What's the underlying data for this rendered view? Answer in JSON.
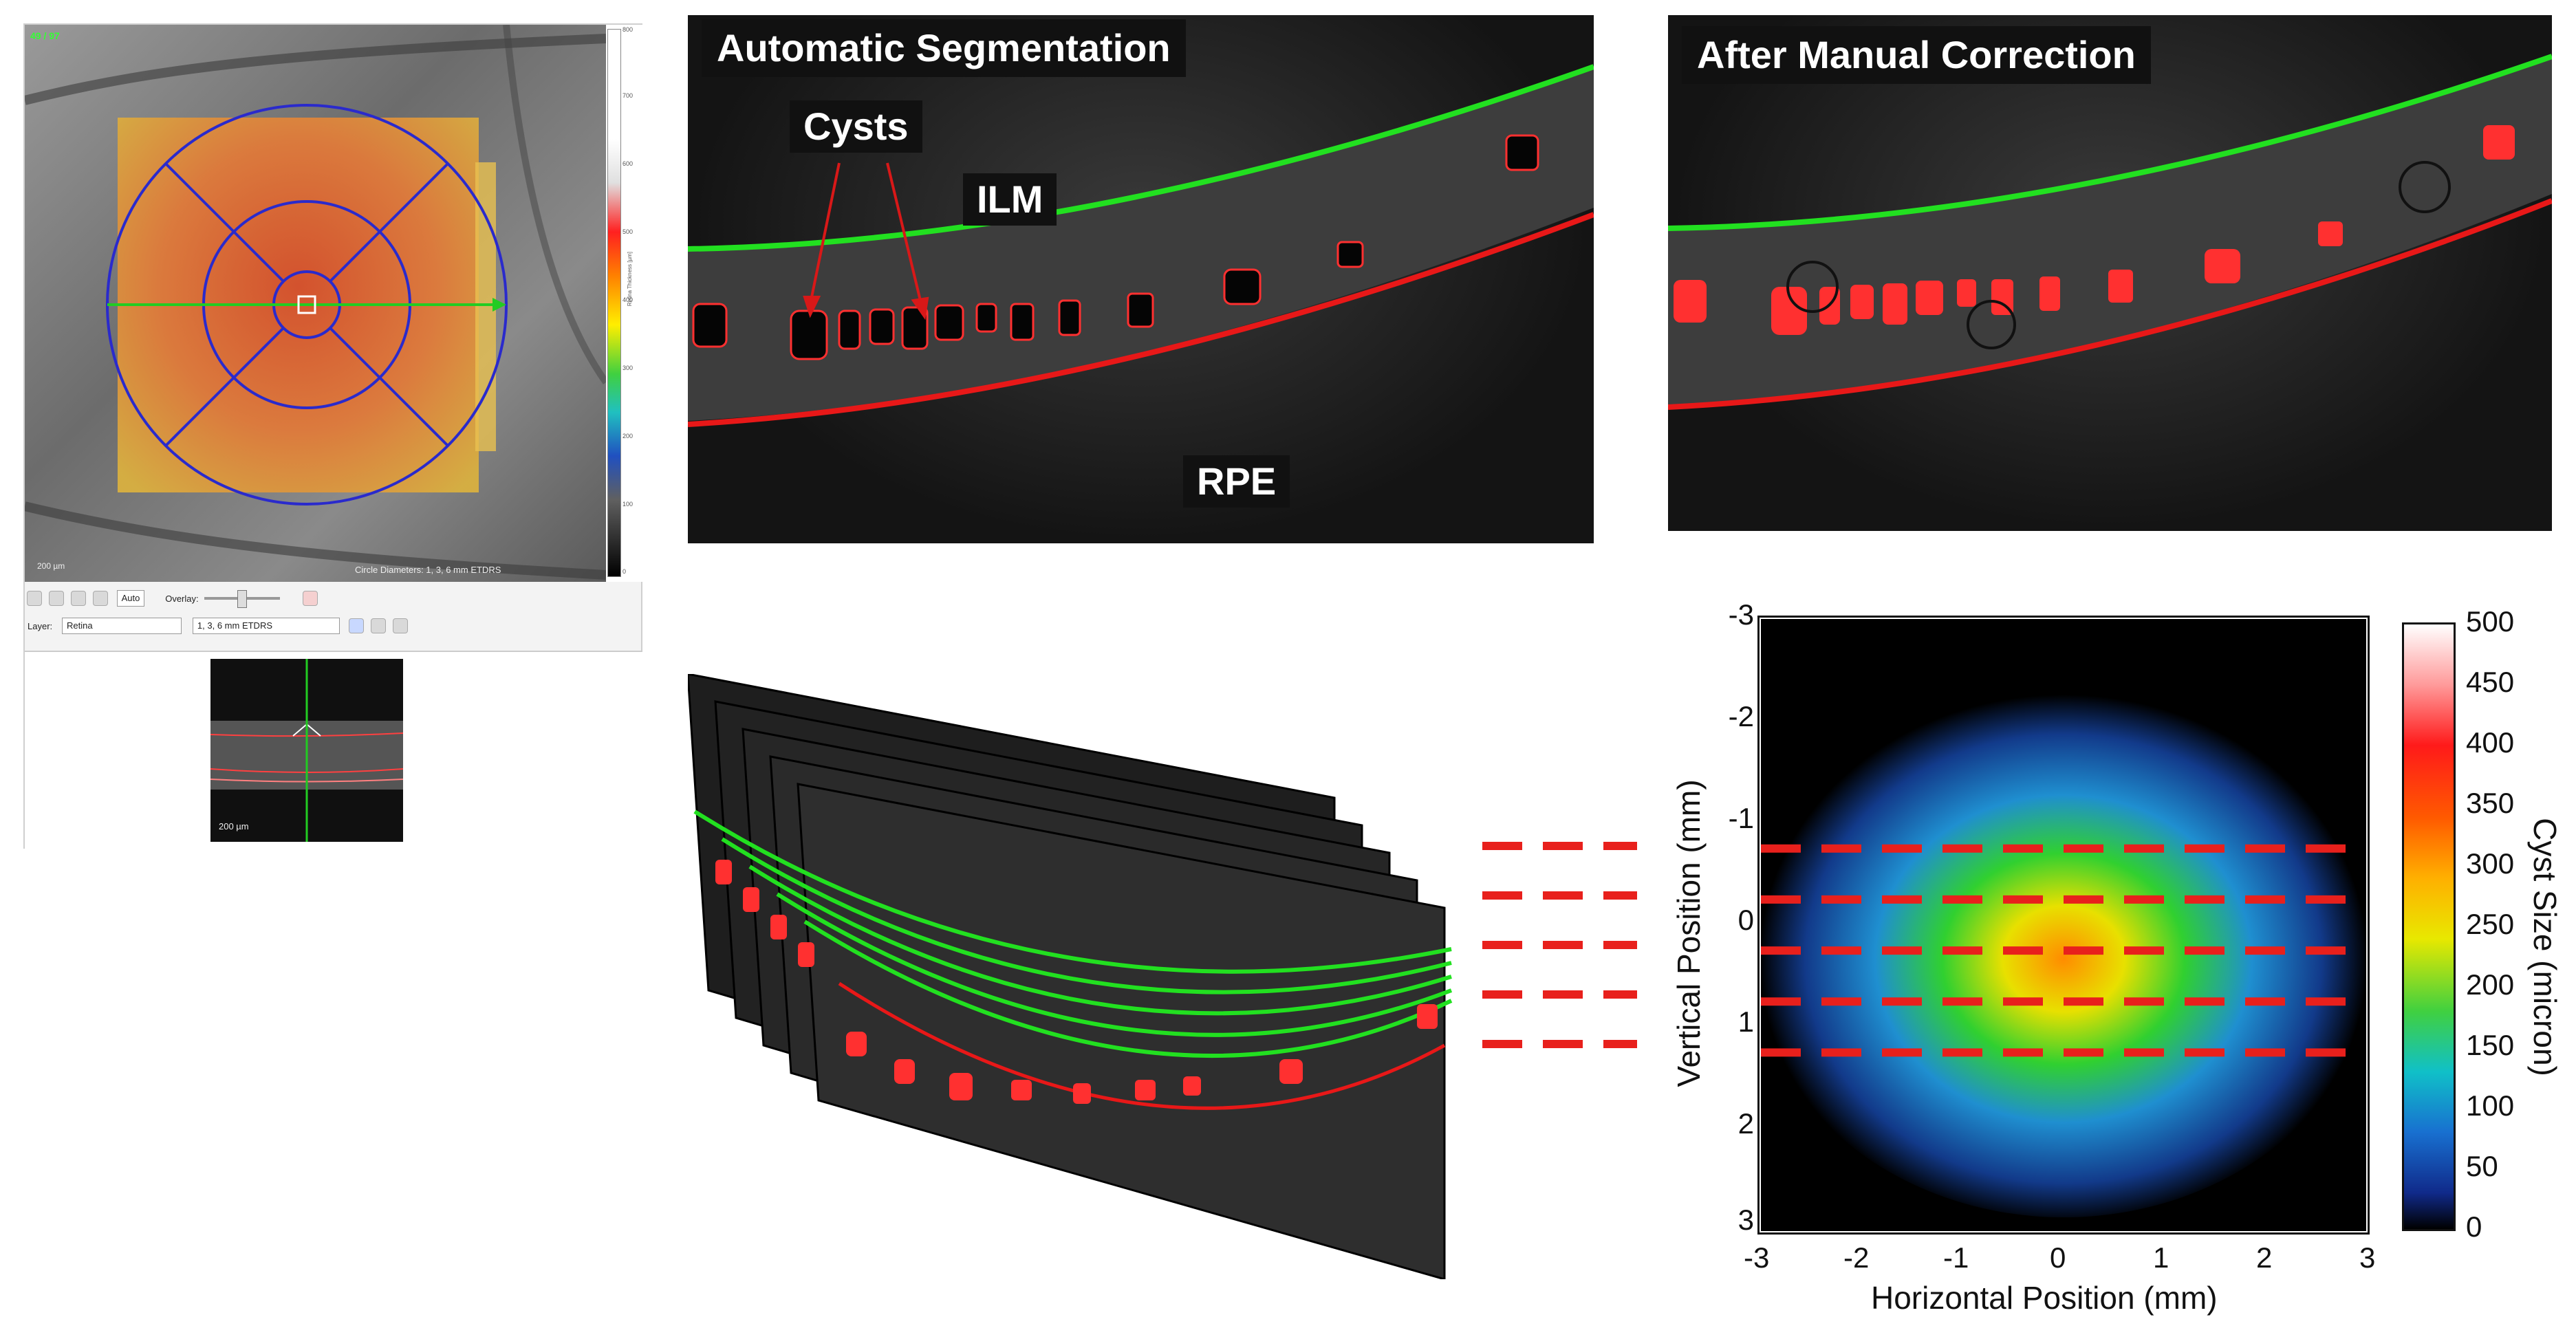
{
  "viewer": {
    "title_tag": "49 / 97",
    "scale_label": "200 µm",
    "circle_info": "Circle Diameters: 1, 3, 6 mm ETDRS",
    "colorbar": {
      "title": "Retina Thickness [µm]",
      "ticks": [
        "800",
        "700",
        "600",
        "500",
        "400",
        "300",
        "200",
        "100",
        "0"
      ]
    },
    "toolbar": {
      "zoom_mode": "Auto",
      "overlay_label": "Overlay:",
      "layer_label": "Layer:",
      "layer_value": "Retina",
      "grid_value": "1, 3, 6 mm ETDRS"
    },
    "thumb_scale": "200 µm"
  },
  "panels": {
    "auto": {
      "title": "Automatic Segmentation",
      "cysts_label": "Cysts",
      "ilm_label": "ILM",
      "rpe_label": "RPE"
    },
    "manual": {
      "title": "After Manual Correction"
    }
  },
  "heatmap": {
    "xlabel": "Horizontal Position (mm)",
    "ylabel": "Vertical Position (mm)",
    "x_ticks": [
      "-3",
      "-2",
      "-1",
      "0",
      "1",
      "2",
      "3"
    ],
    "y_ticks": [
      "-3",
      "-2",
      "-1",
      "0",
      "1",
      "2",
      "3"
    ],
    "colorbar_label": "Cyst Size (micron)",
    "colorbar_ticks": [
      "500",
      "450",
      "400",
      "350",
      "300",
      "250",
      "200",
      "150",
      "100",
      "50",
      "0"
    ]
  },
  "chart_data": {
    "type": "heatmap",
    "xlabel": "Horizontal Position (mm)",
    "ylabel": "Vertical Position (mm)",
    "xlim": [
      -3,
      3
    ],
    "ylim": [
      -3,
      3
    ],
    "colorbar_range": [
      0,
      500
    ],
    "colorbar_label": "Cyst Size (micron)",
    "slice_lines_y": [
      -0.75,
      -0.25,
      0.25,
      0.75,
      1.25
    ],
    "colors": {
      "slice_line": "#e8201c",
      "ilm": "#22e020",
      "rpe": "#e81818",
      "cyst": "#ff3030",
      "etdrs_grid": "#2a2acc"
    }
  }
}
